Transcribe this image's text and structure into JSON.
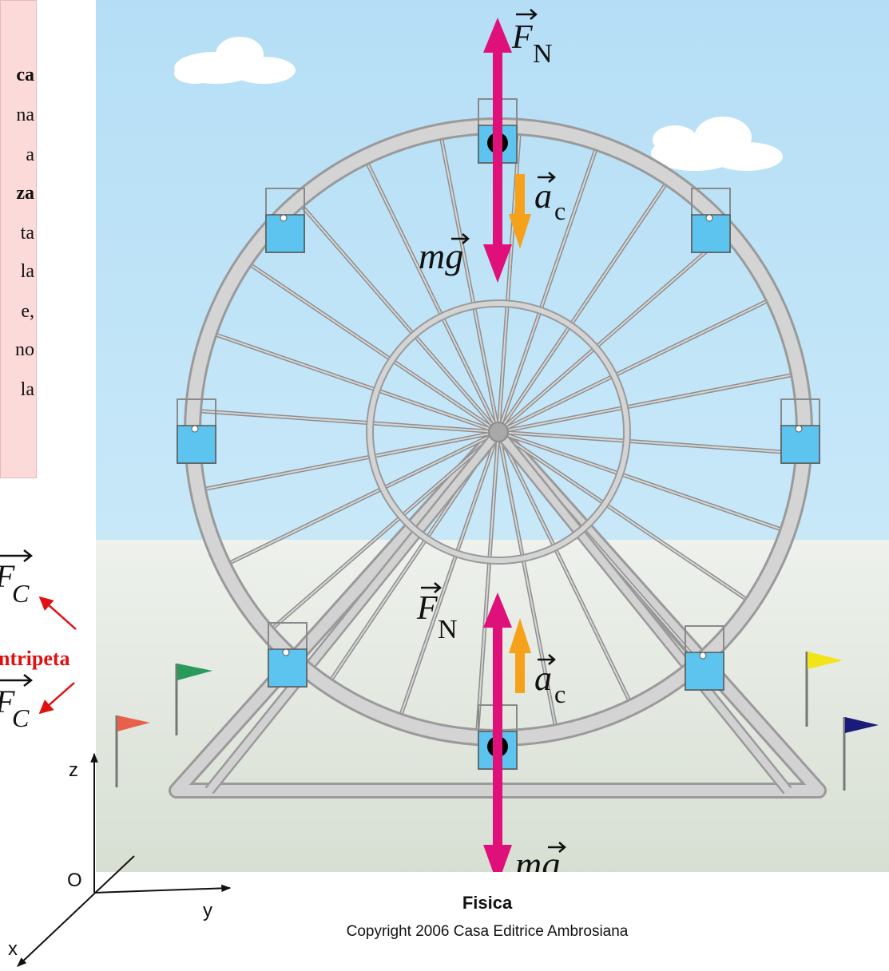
{
  "note_box": {
    "lines": [
      {
        "text": "ca",
        "bold": true
      },
      {
        "text": "na",
        "bold": false
      },
      {
        "text": "a",
        "bold": false
      },
      {
        "text": "za",
        "bold": true
      },
      {
        "text": "ta",
        "bold": false
      },
      {
        "text": "la",
        "bold": false
      },
      {
        "text": "e,",
        "bold": false
      },
      {
        "text": "no",
        "bold": false
      },
      {
        "text": "la",
        "bold": false
      }
    ]
  },
  "left_formula": {
    "fc_top": "F",
    "fc_top_sub": "C",
    "centripeta_label": "ntripeta",
    "fc_bottom": "F",
    "fc_bottom_sub": "C"
  },
  "axes": {
    "z": "z",
    "o": "O",
    "y": "y",
    "x": "x"
  },
  "vectors": {
    "top": {
      "fn": "F",
      "fn_sub": "N",
      "ac": "a",
      "ac_sub": "c",
      "mg": "mg"
    },
    "bottom": {
      "fn": "F",
      "fn_sub": "N",
      "ac": "a",
      "ac_sub": "c",
      "mg": "mg"
    }
  },
  "caption": {
    "title": "Fisica",
    "copyright": "Copyright 2006 Casa Editrice Ambrosiana"
  },
  "colors": {
    "force_arrow": "#e0107a",
    "accel_arrow": "#f5a21a",
    "sky": "#bfe3f7",
    "ground": "#dfe6dc",
    "wheel": "#c9c9c9",
    "cabin": "#5cc4ee",
    "centripeta_red": "#e01010",
    "flags": [
      "#e8604a",
      "#2a9a5a",
      "#f1e417",
      "#1a1a7a"
    ]
  }
}
